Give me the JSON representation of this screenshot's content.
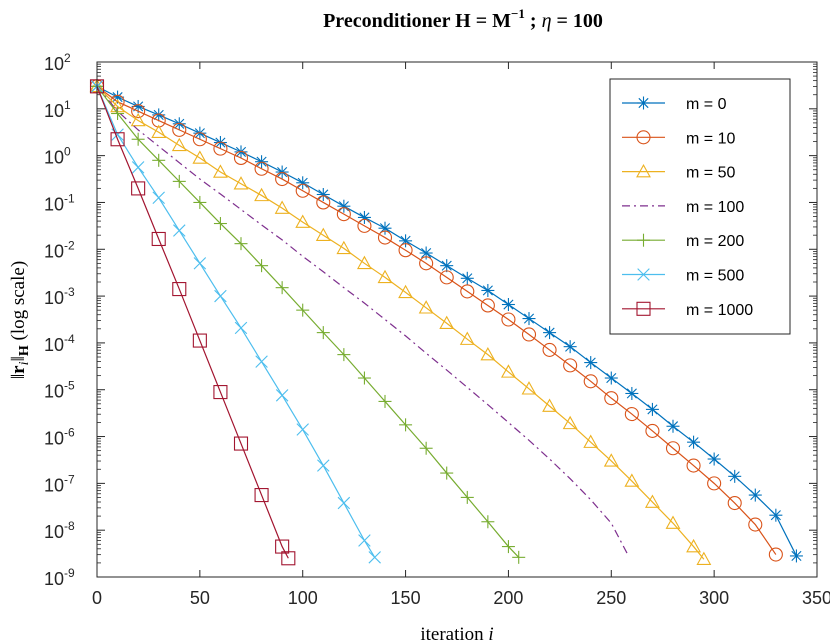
{
  "chart_data": {
    "type": "line",
    "title": "Preconditioner H = M^-1 ; η = 100",
    "title_parts": {
      "prefix": "Preconditioner ",
      "bold_sym": "H",
      "eq": " = ",
      "sym2": "M",
      "exp": "−1",
      "mid": " ; ",
      "eta": "η",
      "suffix": " = 100"
    },
    "xlabel": "iteration",
    "xlabel_var": "i",
    "ylabel": "‖r_i‖_H (log scale)",
    "ylabel_parts": {
      "norm_open": "‖",
      "r": "r",
      "i": "i",
      "norm_close": "‖",
      "h": "H",
      "tail": " (log scale)"
    },
    "xlim": [
      0,
      350
    ],
    "ylim_exponent": [
      -9,
      2
    ],
    "x_ticks": [
      "0",
      "50",
      "100",
      "150",
      "200",
      "250",
      "300",
      "350"
    ],
    "y_ticks": [
      {
        "base": "10",
        "exp": "2"
      },
      {
        "base": "10",
        "exp": "1"
      },
      {
        "base": "10",
        "exp": "0"
      },
      {
        "base": "10",
        "exp": "-1"
      },
      {
        "base": "10",
        "exp": "-2"
      },
      {
        "base": "10",
        "exp": "-3"
      },
      {
        "base": "10",
        "exp": "-4"
      },
      {
        "base": "10",
        "exp": "-5"
      },
      {
        "base": "10",
        "exp": "-6"
      },
      {
        "base": "10",
        "exp": "-7"
      },
      {
        "base": "10",
        "exp": "-8"
      },
      {
        "base": "10",
        "exp": "-9"
      }
    ],
    "legend_position": "top-right",
    "series": [
      {
        "name": "m = 0",
        "color": "#0072BD",
        "marker": "asterisk",
        "line": "solid",
        "x": [
          0,
          10,
          20,
          30,
          40,
          50,
          60,
          70,
          80,
          90,
          100,
          110,
          120,
          130,
          140,
          150,
          160,
          170,
          180,
          190,
          200,
          210,
          220,
          230,
          240,
          250,
          260,
          270,
          280,
          290,
          300,
          310,
          320,
          330,
          340
        ],
        "log10_y": [
          1.48,
          1.25,
          1.05,
          0.87,
          0.68,
          0.48,
          0.28,
          0.08,
          -0.13,
          -0.35,
          -0.58,
          -0.83,
          -1.08,
          -1.32,
          -1.55,
          -1.82,
          -2.08,
          -2.35,
          -2.62,
          -2.88,
          -3.18,
          -3.48,
          -3.78,
          -4.08,
          -4.42,
          -4.75,
          -5.08,
          -5.42,
          -5.78,
          -6.12,
          -6.48,
          -6.85,
          -7.25,
          -7.68,
          -8.55
        ]
      },
      {
        "name": "m = 10",
        "color": "#D95319",
        "marker": "circle",
        "line": "solid",
        "x": [
          0,
          10,
          20,
          30,
          40,
          50,
          60,
          70,
          80,
          90,
          100,
          110,
          120,
          130,
          140,
          150,
          160,
          170,
          180,
          190,
          200,
          210,
          220,
          230,
          240,
          250,
          260,
          270,
          280,
          290,
          300,
          310,
          320,
          330
        ],
        "log10_y": [
          1.48,
          1.15,
          0.95,
          0.75,
          0.55,
          0.35,
          0.15,
          -0.05,
          -0.28,
          -0.5,
          -0.75,
          -1.0,
          -1.25,
          -1.5,
          -1.75,
          -2.02,
          -2.3,
          -2.6,
          -2.9,
          -3.2,
          -3.5,
          -3.82,
          -4.15,
          -4.48,
          -4.82,
          -5.18,
          -5.52,
          -5.88,
          -6.25,
          -6.62,
          -7.0,
          -7.42,
          -7.88,
          -8.52
        ]
      },
      {
        "name": "m = 50",
        "color": "#EDB120",
        "marker": "triangle",
        "line": "solid",
        "x": [
          0,
          10,
          20,
          30,
          40,
          50,
          60,
          70,
          80,
          90,
          100,
          110,
          120,
          130,
          140,
          150,
          160,
          170,
          180,
          190,
          200,
          210,
          220,
          230,
          240,
          250,
          260,
          270,
          280,
          290,
          295
        ],
        "log10_y": [
          1.48,
          1.05,
          0.75,
          0.5,
          0.22,
          -0.05,
          -0.35,
          -0.6,
          -0.85,
          -1.12,
          -1.42,
          -1.7,
          -1.98,
          -2.3,
          -2.6,
          -2.92,
          -3.25,
          -3.58,
          -3.92,
          -4.25,
          -4.62,
          -4.98,
          -5.35,
          -5.72,
          -6.12,
          -6.52,
          -6.95,
          -7.4,
          -7.85,
          -8.35,
          -8.62
        ]
      },
      {
        "name": "m = 100",
        "color": "#7E2F8E",
        "marker": "none",
        "line": "dashdot",
        "x": [
          0,
          10,
          20,
          30,
          40,
          50,
          60,
          70,
          80,
          90,
          100,
          110,
          120,
          130,
          140,
          150,
          160,
          170,
          180,
          190,
          200,
          210,
          220,
          230,
          240,
          250,
          258
        ],
        "log10_y": [
          1.48,
          0.95,
          0.55,
          0.2,
          -0.15,
          -0.5,
          -0.82,
          -1.15,
          -1.48,
          -1.8,
          -2.15,
          -2.48,
          -2.82,
          -3.15,
          -3.5,
          -3.85,
          -4.22,
          -4.58,
          -4.95,
          -5.32,
          -5.7,
          -6.08,
          -6.48,
          -6.9,
          -7.35,
          -7.85,
          -8.52
        ]
      },
      {
        "name": "m = 200",
        "color": "#77AC30",
        "marker": "plus",
        "line": "solid",
        "x": [
          0,
          10,
          20,
          30,
          40,
          50,
          60,
          70,
          80,
          90,
          100,
          110,
          120,
          130,
          140,
          150,
          160,
          170,
          180,
          190,
          200,
          205
        ],
        "log10_y": [
          1.48,
          0.9,
          0.35,
          -0.1,
          -0.55,
          -1.0,
          -1.45,
          -1.88,
          -2.35,
          -2.82,
          -3.3,
          -3.78,
          -4.25,
          -4.75,
          -5.25,
          -5.75,
          -6.25,
          -6.78,
          -7.3,
          -7.82,
          -8.35,
          -8.58
        ]
      },
      {
        "name": "m = 500",
        "color": "#4DBEEE",
        "marker": "cross",
        "line": "solid",
        "x": [
          0,
          10,
          20,
          30,
          40,
          50,
          60,
          70,
          80,
          90,
          100,
          110,
          120,
          130,
          135
        ],
        "log10_y": [
          1.48,
          0.45,
          -0.25,
          -0.9,
          -1.6,
          -2.3,
          -3.0,
          -3.68,
          -4.4,
          -5.12,
          -5.85,
          -6.62,
          -7.42,
          -8.22,
          -8.58
        ]
      },
      {
        "name": "m = 1000",
        "color": "#A2142F",
        "marker": "square",
        "line": "solid",
        "x": [
          0,
          10,
          20,
          30,
          40,
          50,
          60,
          70,
          80,
          90,
          93
        ],
        "log10_y": [
          1.48,
          0.35,
          -0.7,
          -1.78,
          -2.85,
          -3.95,
          -5.05,
          -6.15,
          -7.25,
          -8.35,
          -8.6
        ]
      }
    ]
  }
}
